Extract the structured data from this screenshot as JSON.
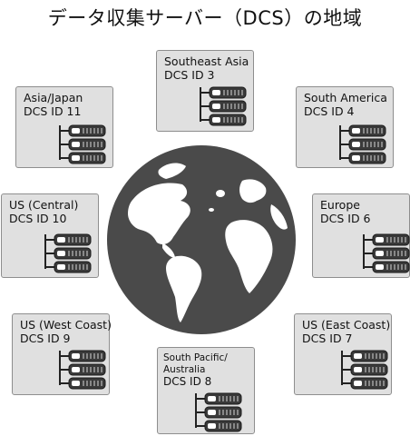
{
  "title": "データ収集サーバー（DCS）の地域",
  "regions": {
    "southeast_asia": {
      "name": "Southeast Asia",
      "dcs": "DCS ID 3"
    },
    "asia_japan": {
      "name": "Asia/Japan",
      "dcs": "DCS ID 11"
    },
    "south_america": {
      "name": "South America",
      "dcs": "DCS ID 4"
    },
    "us_central": {
      "name": "US (Central)",
      "dcs": "DCS ID 10"
    },
    "europe": {
      "name": "Europe",
      "dcs": "DCS ID 6"
    },
    "us_west": {
      "name": "US (West Coast)",
      "dcs": "DCS ID 9"
    },
    "us_east": {
      "name": "US (East Coast)",
      "dcs": "DCS ID 7"
    },
    "south_pacific": {
      "name_line1": "South Pacific/",
      "name_line2": "Australia",
      "dcs": "DCS ID 8"
    }
  },
  "icons": {
    "globe": "globe-icon",
    "server": "server-stack-icon"
  },
  "colors": {
    "box_fill": "#e0e0e0",
    "box_border": "#8e8e8e",
    "globe": "#4a4a4a",
    "continents": "#ffffff"
  }
}
